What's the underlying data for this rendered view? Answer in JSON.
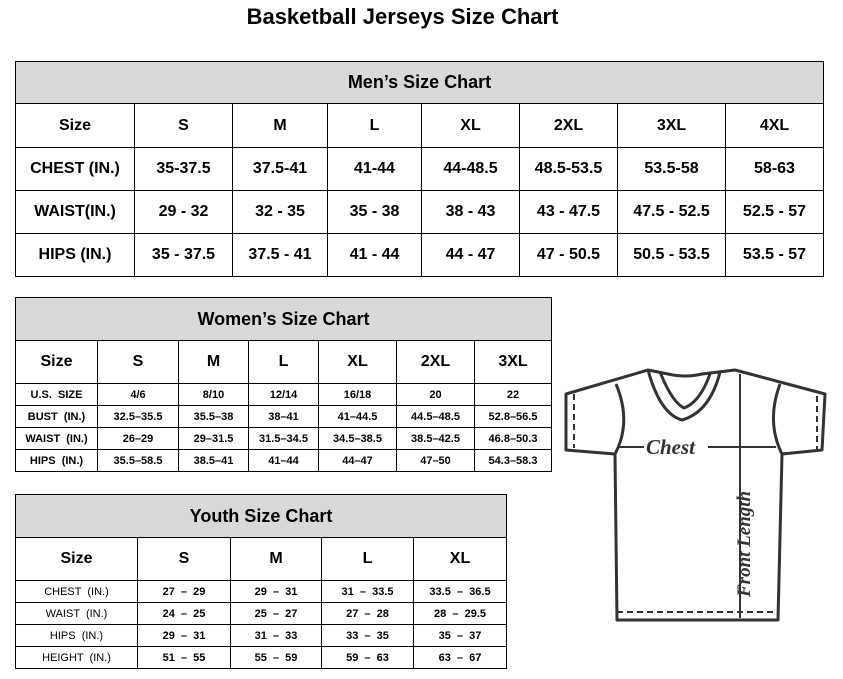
{
  "title": "Basketball Jerseys Size Chart",
  "men": {
    "title": "Men’s Size Chart",
    "header": [
      "Size",
      "S",
      "M",
      "L",
      "XL",
      "2XL",
      "3XL",
      "4XL"
    ],
    "rows": [
      [
        "CHEST (IN.)",
        "35-37.5",
        "37.5-41",
        "41-44",
        "44-48.5",
        "48.5-53.5",
        "53.5-58",
        "58-63"
      ],
      [
        "WAIST(IN.)",
        "29 - 32",
        "32 - 35",
        "35 - 38",
        "38 - 43",
        "43 - 47.5",
        "47.5 - 52.5",
        "52.5 - 57"
      ],
      [
        "HIPS (IN.)",
        "35 - 37.5",
        "37.5 - 41",
        "41 - 44",
        "44 - 47",
        "47 - 50.5",
        "50.5 - 53.5",
        "53.5 - 57"
      ]
    ]
  },
  "women": {
    "title": "Women’s Size Chart",
    "header": [
      "Size",
      "S",
      "M",
      "L",
      "XL",
      "2XL",
      "3XL"
    ],
    "rows": [
      [
        "U.S.  SIZE",
        "4/6",
        "8/10",
        "12/14",
        "16/18",
        "20",
        "22"
      ],
      [
        "BUST  (IN.)",
        "32.5–35.5",
        "35.5–38",
        "38–41",
        "41–44.5",
        "44.5–48.5",
        "52.8–56.5"
      ],
      [
        "WAIST  (IN.)",
        "26–29",
        "29–31.5",
        "31.5–34.5",
        "34.5–38.5",
        "38.5–42.5",
        "46.8–50.3"
      ],
      [
        "HIPS  (IN.)",
        "35.5–58.5",
        "38.5–41",
        "41–44",
        "44–47",
        "47–50",
        "54.3–58.3"
      ]
    ]
  },
  "youth": {
    "title": "Youth Size Chart",
    "header": [
      "Size",
      "S",
      "M",
      "L",
      "XL"
    ],
    "rows": [
      [
        "CHEST  (IN.)",
        "27  –  29",
        "29  –  31",
        "31  –  33.5",
        "33.5  –  36.5"
      ],
      [
        "WAIST  (IN.)",
        "24  –  25",
        "25  –  27",
        "27  –  28",
        "28  –  29.5"
      ],
      [
        "HIPS  (IN.)",
        "29  –  31",
        "31  –  33",
        "33  –  35",
        "35  –  37"
      ],
      [
        "HEIGHT  (IN.)",
        "51  –  55",
        "55  –  59",
        "59  –  63",
        "63  –  67"
      ]
    ]
  },
  "diagram": {
    "chest_label": "Chest",
    "length_label": "Front Length",
    "icon": "t-shirt-icon"
  }
}
